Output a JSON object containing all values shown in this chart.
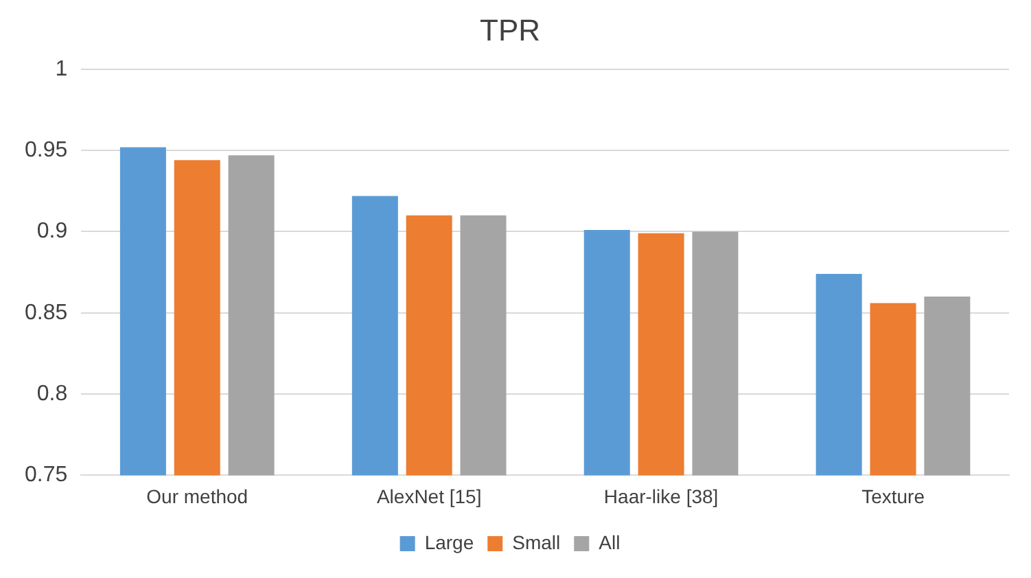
{
  "chart_data": {
    "type": "bar",
    "title": "TPR",
    "categories": [
      "Our method",
      "AlexNet [15]",
      "Haar-like [38]",
      "Texture"
    ],
    "series": [
      {
        "name": "Large",
        "color": "#5b9bd5",
        "values": [
          0.952,
          0.922,
          0.901,
          0.874
        ]
      },
      {
        "name": "Small",
        "color": "#ed7d31",
        "values": [
          0.944,
          0.91,
          0.899,
          0.856
        ]
      },
      {
        "name": "All",
        "color": "#a5a5a5",
        "values": [
          0.947,
          0.91,
          0.9,
          0.86
        ]
      }
    ],
    "ylim": [
      0.75,
      1
    ],
    "yticks": [
      0.75,
      0.8,
      0.85,
      0.9,
      0.95,
      1
    ],
    "grid": "y",
    "legend": "bottom"
  }
}
